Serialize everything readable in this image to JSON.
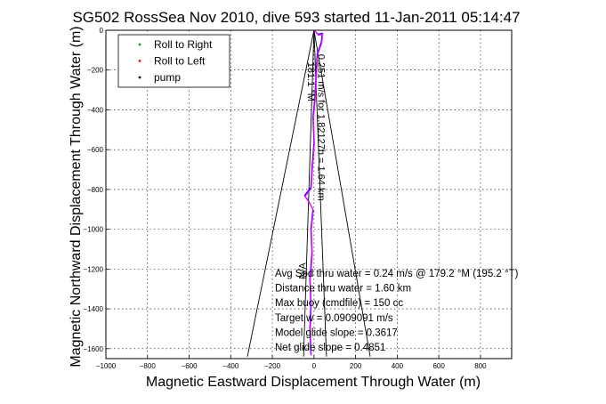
{
  "chart_data": {
    "type": "line",
    "title": "SG502 RossSea Nov 2010, dive 593 started 11-Jan-2011 05:14:47",
    "xlabel": "Magnetic Eastward Displacement Through Water (m)",
    "ylabel": "Magnetic Northward Displacement Through Water (m)",
    "xlim": [
      -1000,
      950
    ],
    "ylim": [
      -1650,
      0
    ],
    "xticks": [
      -1000,
      -800,
      -600,
      -400,
      -200,
      0,
      200,
      400,
      600,
      800
    ],
    "yticks": [
      0,
      -200,
      -400,
      -600,
      -800,
      -1000,
      -1200,
      -1400,
      -1600
    ],
    "grid": true,
    "legend_position": "top-left",
    "legend": [
      {
        "label": "Roll to Right",
        "color": "#00aa00",
        "marker": "dot"
      },
      {
        "label": "Roll to Left",
        "color": "#ff0000",
        "marker": "dot"
      },
      {
        "label": "pump",
        "color": "#000000",
        "marker": "dot"
      }
    ],
    "series": [
      {
        "color": "#0000ff",
        "points": [
          [
            0,
            0
          ],
          [
            20,
            -20
          ],
          [
            40,
            -15
          ],
          [
            35,
            -60
          ],
          [
            15,
            -120
          ],
          [
            10,
            -220
          ],
          [
            5,
            -330
          ],
          [
            -5,
            -440
          ],
          [
            0,
            -560
          ],
          [
            -10,
            -700
          ],
          [
            -15,
            -790
          ],
          [
            -45,
            -830
          ],
          [
            -25,
            -860
          ],
          [
            -5,
            -900
          ],
          [
            -15,
            -1000
          ],
          [
            -10,
            -1120
          ],
          [
            -20,
            -1250
          ],
          [
            -15,
            -1380
          ],
          [
            -20,
            -1500
          ],
          [
            -15,
            -1630
          ]
        ]
      },
      {
        "color": "#ff00ff",
        "points": [
          [
            0,
            0
          ],
          [
            22,
            -25
          ],
          [
            42,
            -20
          ],
          [
            37,
            -65
          ],
          [
            17,
            -125
          ],
          [
            12,
            -225
          ],
          [
            7,
            -335
          ],
          [
            -3,
            -445
          ],
          [
            2,
            -565
          ],
          [
            -8,
            -705
          ],
          [
            -13,
            -795
          ],
          [
            -43,
            -835
          ],
          [
            -23,
            -865
          ],
          [
            -3,
            -905
          ],
          [
            -13,
            -1005
          ],
          [
            -8,
            -1125
          ],
          [
            -18,
            -1255
          ],
          [
            -13,
            -1385
          ],
          [
            -18,
            -1505
          ],
          [
            -13,
            -1635
          ]
        ]
      }
    ],
    "cone_lines": [
      {
        "color": "#000000",
        "points": [
          [
            -320,
            -1640
          ],
          [
            0,
            0
          ],
          [
            270,
            -1640
          ]
        ]
      },
      {
        "color": "#000000",
        "points": [
          [
            -50,
            -1640
          ],
          [
            0,
            0
          ],
          [
            60,
            -1640
          ]
        ]
      }
    ],
    "heading_labels": [
      {
        "text": "181.1 °M",
        "x": -30,
        "y": -160,
        "rotate": 90
      },
      {
        "text": "0.251 m/s for 1.82127h = 1.64 km",
        "x": 20,
        "y": -120,
        "rotate": 90
      },
      {
        "text": "N/A",
        "x": -40,
        "y": -1250,
        "rotate": -90
      }
    ],
    "annotations": [
      "Avg Spd thru water =  0.24 m/s @ 179.2    °M (195.2 °T)",
      "Distance thru water =  1.60 km",
      "Max buoy (cmdfile) = 150 cc",
      "Target w = 0.0909091 m/s",
      "Model glide slope = 0.3617",
      "Net glide slope = 0.4851"
    ]
  }
}
